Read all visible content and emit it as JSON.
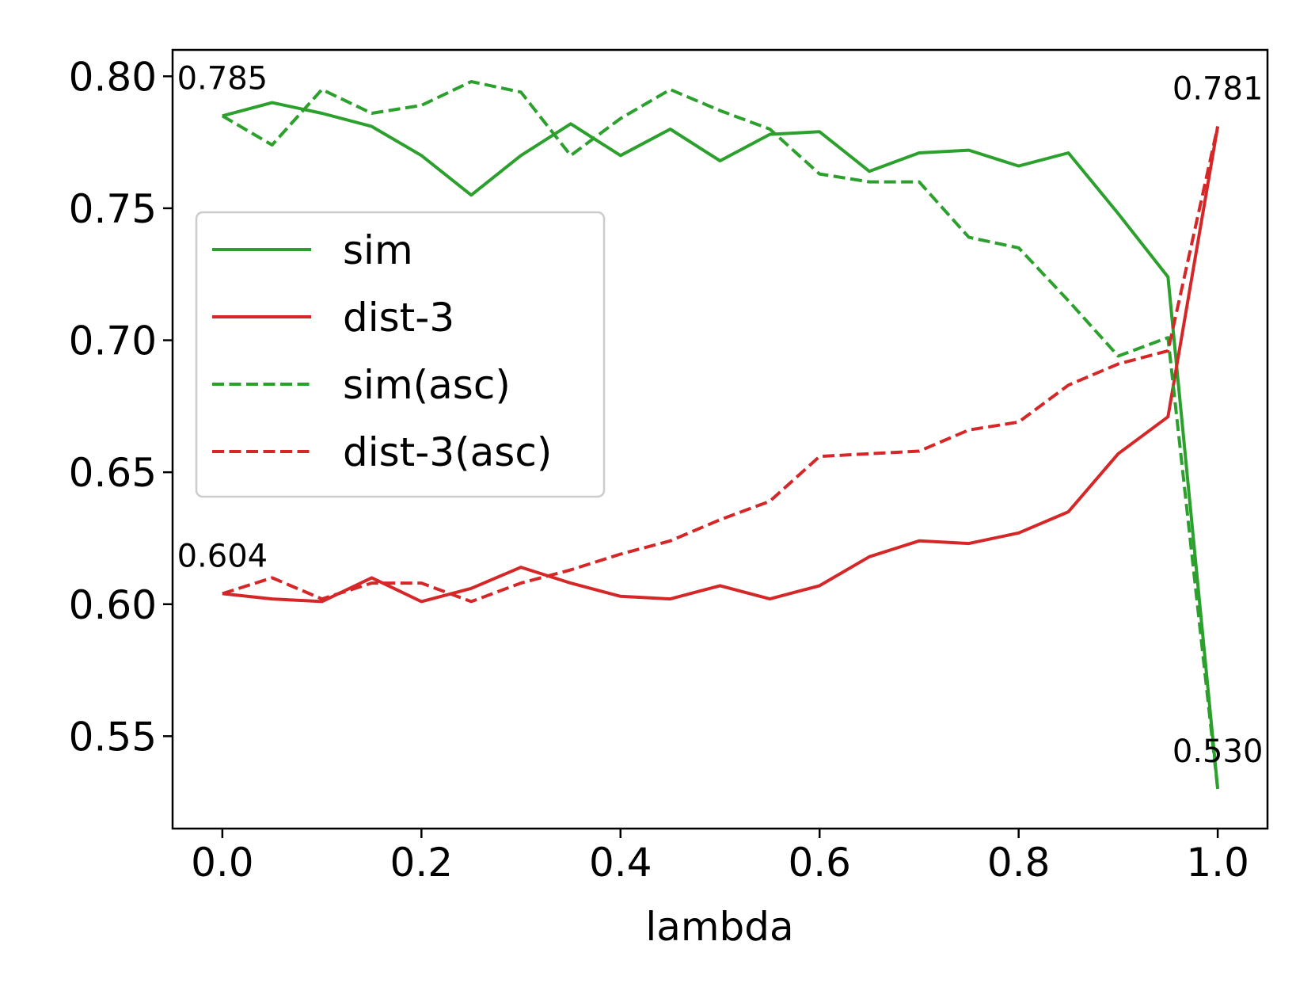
{
  "chart_data": {
    "type": "line",
    "xlabel": "lambda",
    "ylabel": "",
    "xlim": [
      -0.05,
      1.05
    ],
    "ylim": [
      0.515,
      0.81
    ],
    "xticks": [
      0.0,
      0.2,
      0.4,
      0.6,
      0.8,
      1.0
    ],
    "xtick_labels": [
      "0.0",
      "0.2",
      "0.4",
      "0.6",
      "0.8",
      "1.0"
    ],
    "yticks": [
      0.55,
      0.6,
      0.65,
      0.7,
      0.75,
      0.8
    ],
    "ytick_labels": [
      "0.55",
      "0.60",
      "0.65",
      "0.70",
      "0.75",
      "0.80"
    ],
    "grid": false,
    "legend_position": "upper-left",
    "x": [
      0.0,
      0.05,
      0.1,
      0.15,
      0.2,
      0.25,
      0.3,
      0.35,
      0.4,
      0.45,
      0.5,
      0.55,
      0.6,
      0.65,
      0.7,
      0.75,
      0.8,
      0.85,
      0.9,
      0.95,
      1.0
    ],
    "series": [
      {
        "name": "sim",
        "color": "#2ca02c",
        "style": "solid",
        "values": [
          0.785,
          0.79,
          0.786,
          0.781,
          0.77,
          0.755,
          0.77,
          0.782,
          0.77,
          0.78,
          0.768,
          0.778,
          0.779,
          0.764,
          0.771,
          0.772,
          0.766,
          0.771,
          0.748,
          0.724,
          0.53
        ]
      },
      {
        "name": "dist-3",
        "color": "#d62728",
        "style": "solid",
        "values": [
          0.604,
          0.602,
          0.601,
          0.61,
          0.601,
          0.606,
          0.614,
          0.608,
          0.603,
          0.602,
          0.607,
          0.602,
          0.607,
          0.618,
          0.624,
          0.623,
          0.627,
          0.635,
          0.657,
          0.671,
          0.781
        ]
      },
      {
        "name": "sim(asc)",
        "color": "#2ca02c",
        "style": "dashed",
        "values": [
          0.785,
          0.774,
          0.795,
          0.786,
          0.789,
          0.798,
          0.794,
          0.77,
          0.784,
          0.795,
          0.787,
          0.78,
          0.763,
          0.76,
          0.76,
          0.739,
          0.735,
          0.715,
          0.694,
          0.701,
          0.53
        ]
      },
      {
        "name": "dist-3(asc)",
        "color": "#d62728",
        "style": "dashed",
        "values": [
          0.604,
          0.61,
          0.602,
          0.608,
          0.608,
          0.601,
          0.608,
          0.613,
          0.619,
          0.624,
          0.632,
          0.639,
          0.656,
          0.657,
          0.658,
          0.666,
          0.669,
          0.683,
          0.691,
          0.696,
          0.781
        ]
      }
    ],
    "annotations": [
      {
        "text": "0.785",
        "x": 0.0,
        "y": 0.785
      },
      {
        "text": "0.604",
        "x": 0.0,
        "y": 0.604
      },
      {
        "text": "0.781",
        "x": 1.0,
        "y": 0.781
      },
      {
        "text": "0.530",
        "x": 1.0,
        "y": 0.53
      }
    ]
  }
}
